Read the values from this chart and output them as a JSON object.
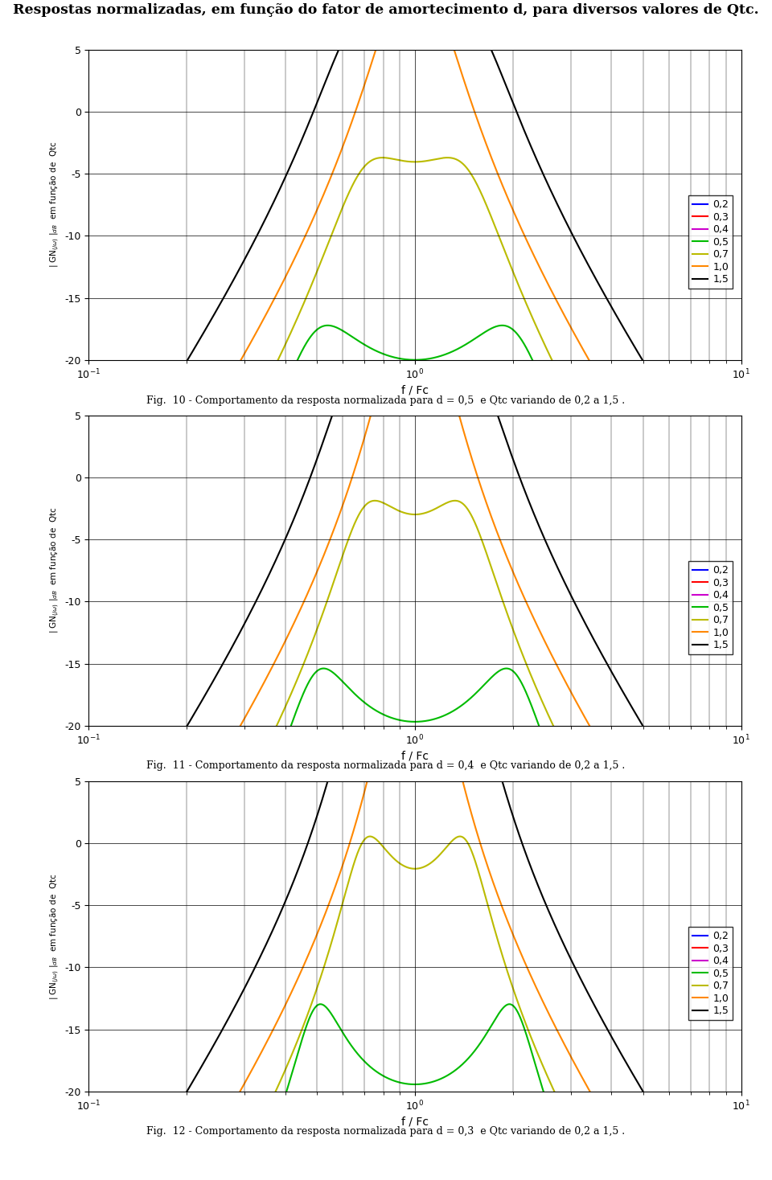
{
  "title": "Respostas normalizadas, em função do fator de amortecimento d, para diversos valores de Qtc.",
  "subplot_captions": [
    "Fig.  10 - Comportamento da resposta normalizada para d = 0,5  e Qtc variando de 0,2 a 1,5 .",
    "Fig.  11 - Comportamento da resposta normalizada para d = 0,4  e Qtc variando de 0,2 a 1,5 .",
    "Fig.  12 - Comportamento da resposta normalizada para d = 0,3  e Qtc variando de 0,2 a 1,5 ."
  ],
  "d_values": [
    0.5,
    0.4,
    0.3
  ],
  "Qtc_values": [
    0.2,
    0.3,
    0.4,
    0.5,
    0.7,
    1.0,
    1.5
  ],
  "colors": [
    "#0000ff",
    "#ff0000",
    "#cc00cc",
    "#00bb00",
    "#bbbb00",
    "#ff8800",
    "#000000"
  ],
  "legend_labels": [
    "0,2",
    "0,3",
    "0,4",
    "0,5",
    "0,7",
    "1,0",
    "1,5"
  ],
  "xlim": [
    0.1,
    10.0
  ],
  "ylim": [
    -20,
    5
  ],
  "xlabel": "f / Fc",
  "background_color": "#ffffff",
  "grid_color": "#000000",
  "linewidth": 1.5
}
